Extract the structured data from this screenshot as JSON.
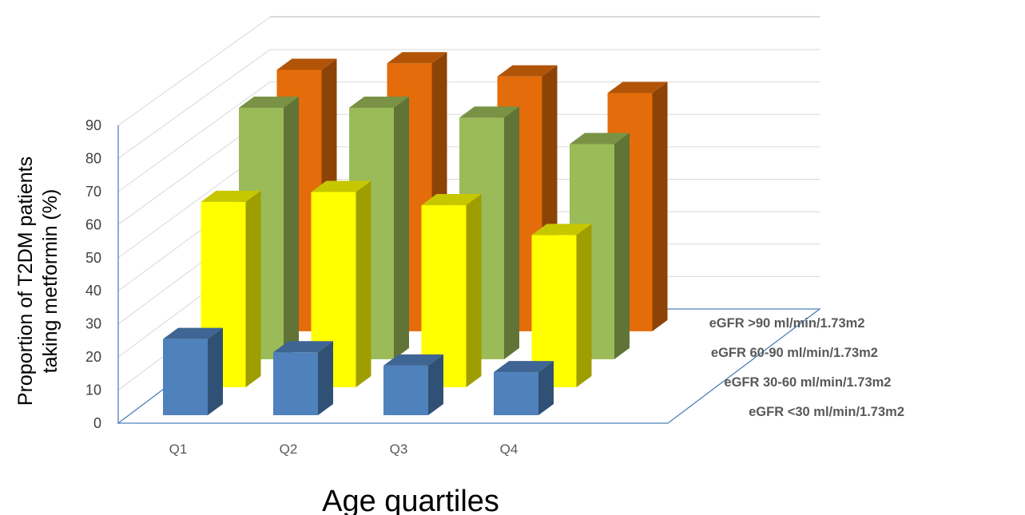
{
  "chart_data": {
    "type": "bar",
    "subtype": "3d-clustered-depth",
    "title": "",
    "xlabel": "Age quartiles",
    "ylabel_lines": [
      "Proportion of T2DM patients",
      "taking metformin (%)"
    ],
    "ylim": [
      0,
      90
    ],
    "yticks": [
      "0",
      "10",
      "20",
      "30",
      "40",
      "50",
      "60",
      "70",
      "80",
      "90"
    ],
    "categories": [
      "Q1",
      "Q2",
      "Q3",
      "Q4"
    ],
    "series": [
      {
        "name": "eGFR <30 ml/min/1.73m2",
        "color": "#4F81BD",
        "values": [
          23,
          19,
          15,
          13
        ]
      },
      {
        "name": "eGFR 30-60 ml/min/1.73m2",
        "color": "#FFFF00",
        "values": [
          56,
          59,
          55,
          46
        ]
      },
      {
        "name": "eGFR 60-90 ml/min/1.73m2",
        "color": "#9BBB59",
        "values": [
          76,
          76,
          73,
          65
        ]
      },
      {
        "name": "eGFR >90 ml/min/1.73m2",
        "color": "#E46C0A",
        "values": [
          79,
          81,
          77,
          72
        ]
      }
    ],
    "grid": true
  }
}
